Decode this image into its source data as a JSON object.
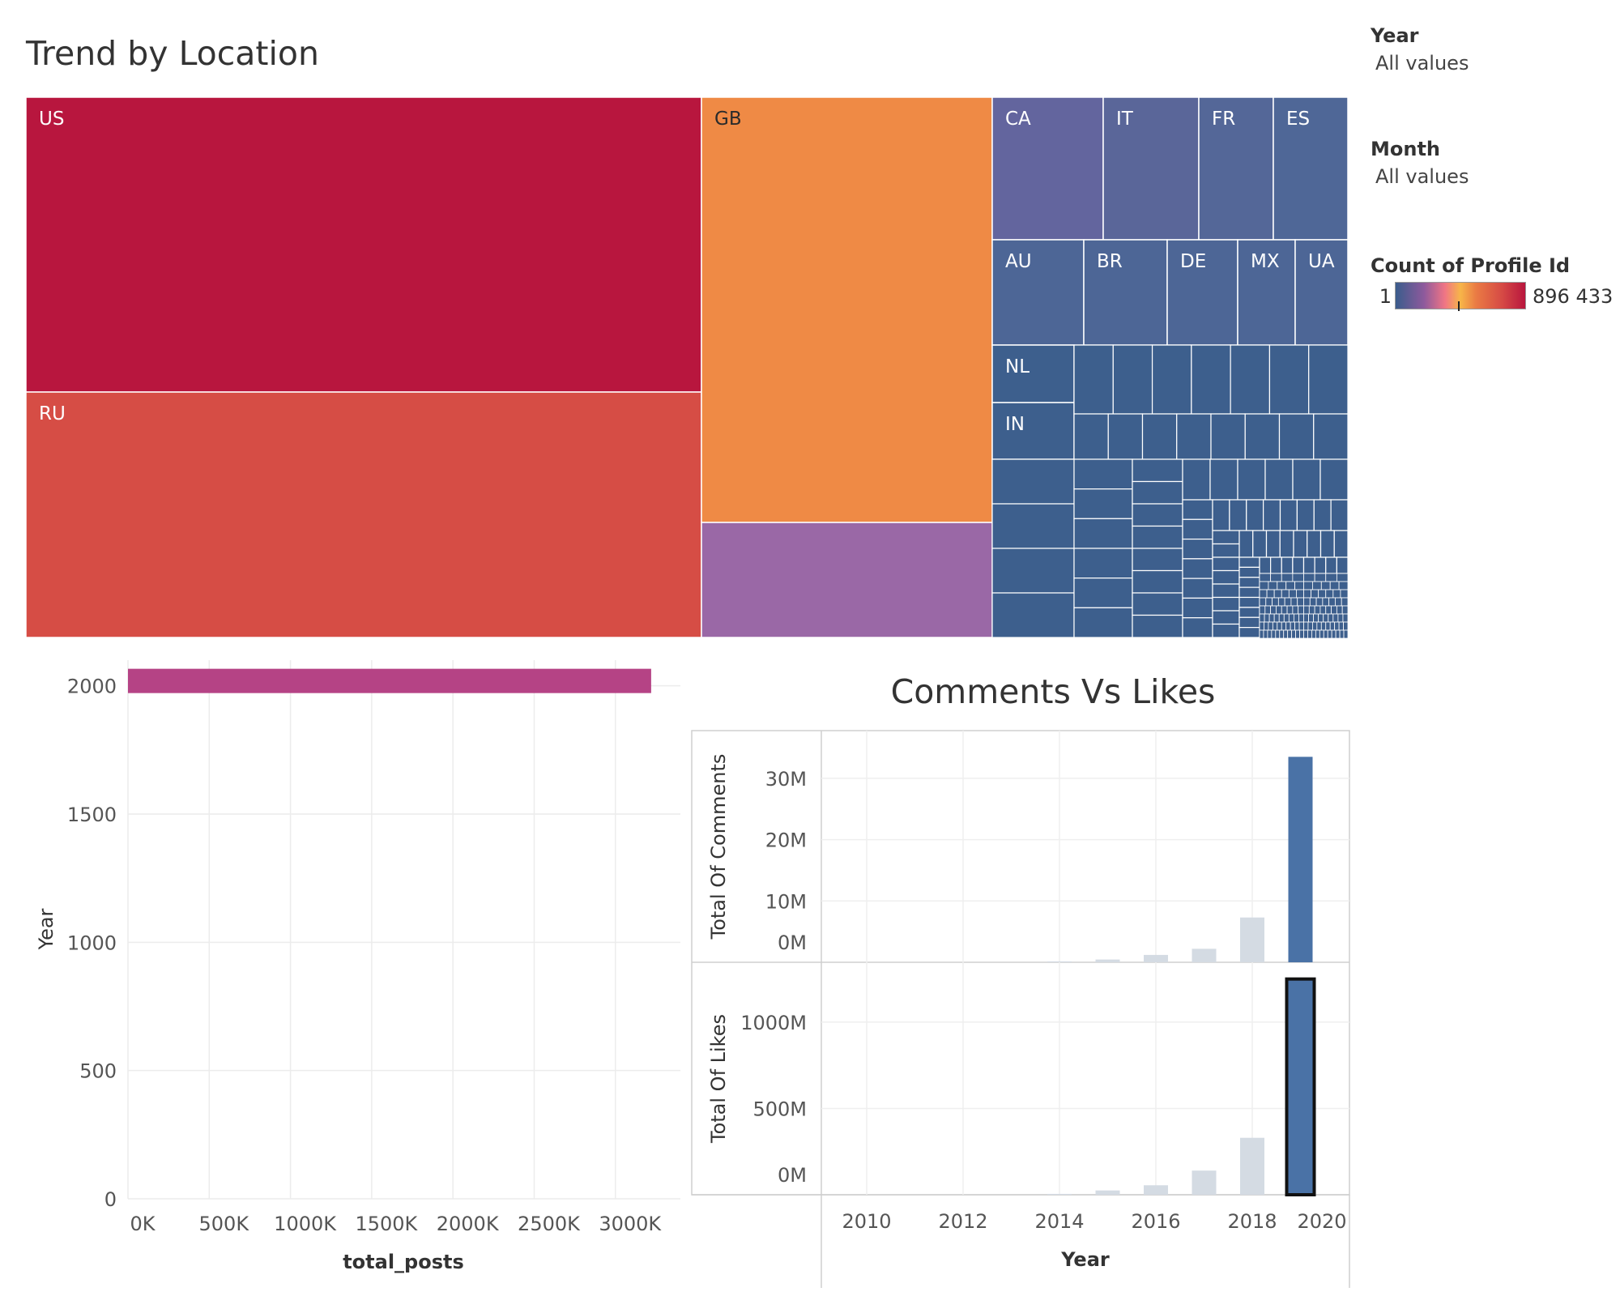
{
  "dashboard": {
    "treemap_title": "Trend by Location",
    "cvl_title": "Comments Vs Likes"
  },
  "filters": {
    "year": {
      "label": "Year",
      "value": "All values"
    },
    "month": {
      "label": "Month",
      "value": "All values"
    }
  },
  "legend": {
    "title": "Count of Profile Id",
    "min": "1",
    "max": "896 433"
  },
  "colors": {
    "us": "#b8163e",
    "ru": "#d64d45",
    "gb": "#ef8a45",
    "purple": "#9a68a6",
    "ca": "#63659e",
    "it": "#5a6699",
    "fr": "#546798",
    "es": "#4f6797",
    "mid": "#4d6696",
    "small": "#3d5f8d",
    "bar_pink": "#b54385",
    "bar_blue": "#4a72a6",
    "bar_light": "#d4dbe3"
  },
  "chart_data": [
    {
      "type": "treemap",
      "title": "Trend by Location",
      "measure": "Count of Profile Id",
      "labels": [
        "US",
        "RU",
        "GB",
        "CA",
        "IT",
        "FR",
        "ES",
        "AU",
        "BR",
        "DE",
        "MX",
        "UA",
        "NL",
        "IN"
      ]
    },
    {
      "type": "bar",
      "orientation": "horizontal",
      "xlabel": "total_posts",
      "ylabel": "Year",
      "x_ticks": [
        "0K",
        "500K",
        "1000K",
        "1500K",
        "2000K",
        "2500K",
        "3000K"
      ],
      "y_ticks": [
        "2000",
        "1500",
        "1000",
        "500",
        "0"
      ],
      "xlim": [
        0,
        3400000
      ],
      "ylim": [
        0,
        2100
      ],
      "bars": [
        {
          "year": 2019,
          "total_posts": 3220000
        }
      ],
      "grid": true
    },
    {
      "type": "bar",
      "title": "Comments Vs Likes",
      "xlabel": "Year",
      "x_ticks": [
        "2010",
        "2012",
        "2014",
        "2016",
        "2018",
        "2020"
      ],
      "panels": [
        {
          "ylabel": "Total Of Comments",
          "y_ticks": [
            "30M",
            "20M",
            "10M",
            "0M"
          ],
          "ylim": [
            0,
            35000000
          ],
          "x": [
            2014,
            2015,
            2016,
            2017,
            2018,
            2019
          ],
          "values": [
            150000,
            450000,
            1200000,
            2200000,
            7300000,
            33500000
          ]
        },
        {
          "ylabel": "Total Of Likes",
          "y_ticks": [
            "1000M",
            "500M",
            "0M"
          ],
          "ylim": [
            0,
            1300000000
          ],
          "x": [
            2014,
            2015,
            2016,
            2017,
            2018,
            2019
          ],
          "values": [
            5000000,
            25000000,
            55000000,
            140000000,
            330000000,
            1250000000
          ]
        }
      ],
      "highlight_year": 2019,
      "grid": true
    }
  ]
}
